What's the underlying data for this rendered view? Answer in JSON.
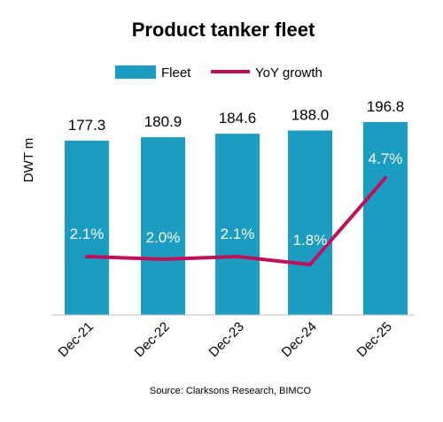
{
  "chart_data": {
    "type": "bar",
    "title": "Product tanker fleet",
    "ylabel": "DWT m",
    "categories": [
      "Dec-21",
      "Dec-22",
      "Dec-23",
      "Dec-24",
      "Dec-25"
    ],
    "series": [
      {
        "name": "Fleet",
        "type": "bar",
        "values": [
          177.3,
          180.9,
          184.6,
          188.0,
          196.8
        ],
        "labels": [
          "177.3",
          "180.9",
          "184.6",
          "188.0",
          "196.8"
        ],
        "color": "#1a9dc1"
      },
      {
        "name": "YoY growth",
        "type": "line",
        "values": [
          2.1,
          2.0,
          2.1,
          1.8,
          4.7
        ],
        "labels": [
          "2.1%",
          "2.0%",
          "2.1%",
          "1.8%",
          "4.7%"
        ],
        "color": "#c0105a"
      }
    ],
    "legend": "top-center",
    "source": "Source: Clarksons Research, BIMCO"
  }
}
